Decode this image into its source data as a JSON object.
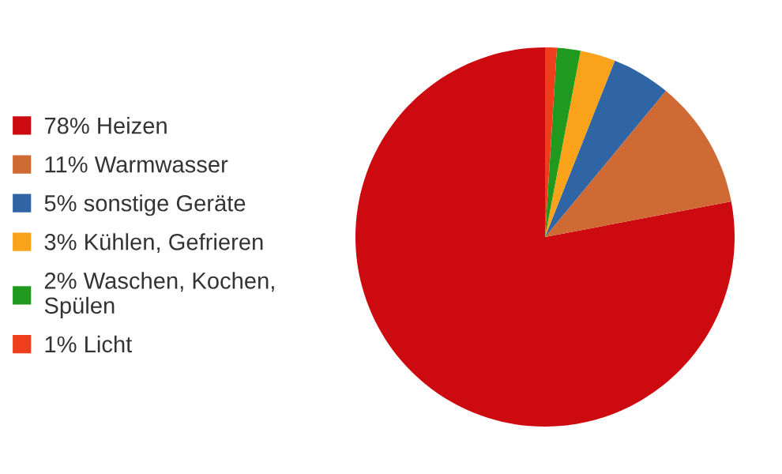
{
  "chart_data": {
    "type": "pie",
    "categories": [
      "78% Heizen",
      "11% Warmwasser",
      "5% sonstige Geräte",
      "3% Kühlen, Gefrieren",
      "2% Waschen, Kochen,\nSpülen",
      "1% Licht"
    ],
    "values": [
      78,
      11,
      5,
      3,
      2,
      1
    ],
    "colors": [
      "#cc0a0f",
      "#cf6a35",
      "#2f65a5",
      "#f9a21a",
      "#1f9a1e",
      "#ef3e1b"
    ],
    "legend": "left"
  }
}
